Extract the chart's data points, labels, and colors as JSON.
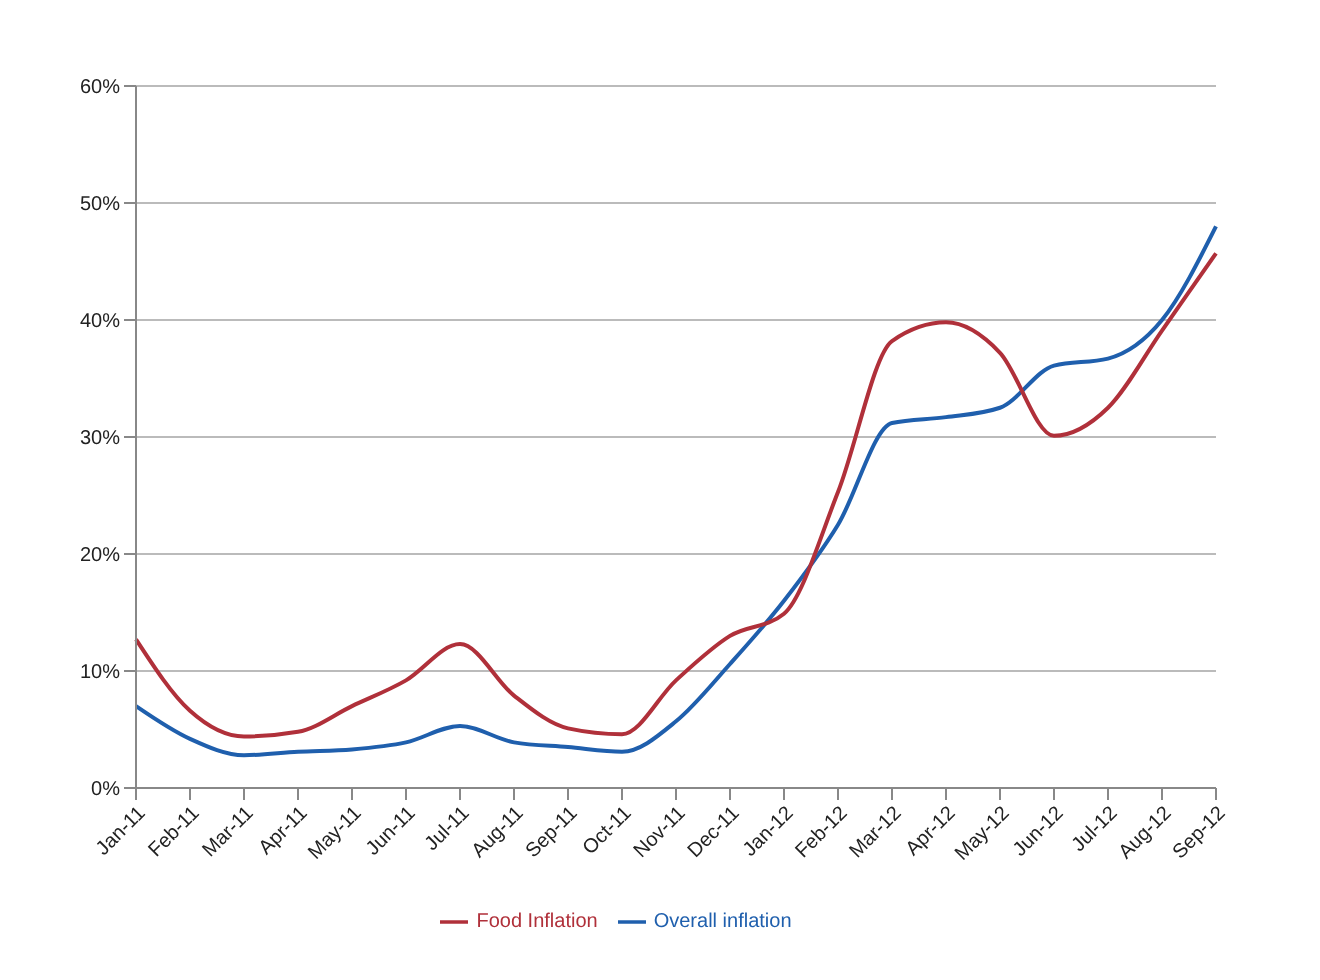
{
  "chart_data": {
    "type": "line",
    "categories": [
      "Jan-11",
      "Feb-11",
      "Mar-11",
      "Apr-11",
      "May-11",
      "Jun-11",
      "Jul-11",
      "Aug-11",
      "Sep-11",
      "Oct-11",
      "Nov-11",
      "Dec-11",
      "Jan-12",
      "Feb-12",
      "Mar-12",
      "Apr-12",
      "May-12",
      "Jun-12",
      "Jul-12",
      "Aug-12",
      "Sep-12"
    ],
    "series": [
      {
        "name": "Overall inflation",
        "color": "#1f5fad",
        "values": [
          7,
          4.2,
          2.8,
          3.1,
          3.3,
          3.9,
          5.3,
          3.9,
          3.5,
          3.1,
          5.7,
          10.6,
          16,
          22.5,
          31.2,
          31.7,
          32.5,
          36.1,
          36.7,
          40,
          48
        ]
      },
      {
        "name": "Food Inflation",
        "color": "#b0303a",
        "values": [
          12.7,
          6.6,
          4.4,
          4.8,
          7,
          9.2,
          12.3,
          7.9,
          5.1,
          4.6,
          9.2,
          13,
          14.9,
          25.3,
          38.2,
          39.8,
          37.2,
          30.1,
          32.5,
          39.1,
          45.7
        ]
      }
    ],
    "ylim": [
      0,
      60
    ],
    "yticks": [
      {
        "value": 0,
        "label": "0%"
      },
      {
        "value": 10,
        "label": "10%"
      },
      {
        "value": 20,
        "label": "20%"
      },
      {
        "value": 30,
        "label": "30%"
      },
      {
        "value": 40,
        "label": "40%"
      },
      {
        "value": 50,
        "label": "50%"
      },
      {
        "value": 60,
        "label": "60%"
      }
    ],
    "grid": "y",
    "legend": "bottom",
    "marker": "none",
    "line_style": "solid"
  }
}
